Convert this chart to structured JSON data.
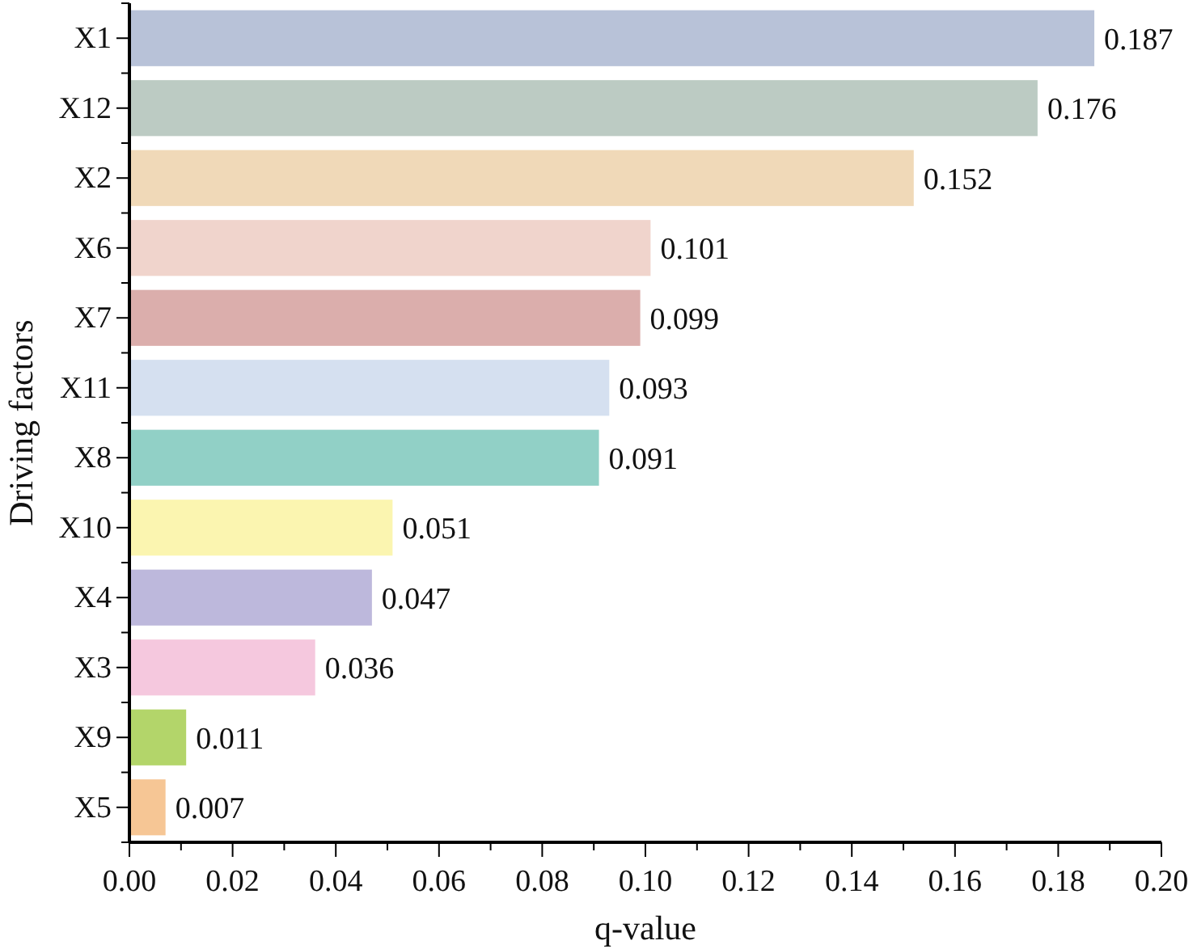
{
  "chart_data": {
    "type": "bar",
    "orientation": "horizontal",
    "xlabel": "q-value",
    "ylabel": "Driving factors",
    "categories": [
      "X1",
      "X12",
      "X2",
      "X6",
      "X7",
      "X11",
      "X8",
      "X10",
      "X4",
      "X3",
      "X9",
      "X5"
    ],
    "values": [
      0.187,
      0.176,
      0.152,
      0.101,
      0.099,
      0.093,
      0.091,
      0.051,
      0.047,
      0.036,
      0.011,
      0.007
    ],
    "colors": [
      "#b8c2d8",
      "#bccbc3",
      "#f0d9b8",
      "#f0d4cc",
      "#dbaeac",
      "#d5e0f0",
      "#91d0c6",
      "#fbf5b0",
      "#bdb8dc",
      "#f5c8de",
      "#b3d56a",
      "#f6c695"
    ],
    "data_labels": true,
    "xlim": [
      0,
      0.2
    ],
    "xticks": [
      {
        "value": 0,
        "label": "0.00"
      },
      {
        "value": 0.01,
        "label": null
      },
      {
        "value": 0.02,
        "label": "0.02"
      },
      {
        "value": 0.03,
        "label": null
      },
      {
        "value": 0.04,
        "label": "0.04"
      },
      {
        "value": 0.05,
        "label": null
      },
      {
        "value": 0.06,
        "label": "0.06"
      },
      {
        "value": 0.07,
        "label": null
      },
      {
        "value": 0.08,
        "label": "0.08"
      },
      {
        "value": 0.09,
        "label": null
      },
      {
        "value": 0.1,
        "label": "0.10"
      },
      {
        "value": 0.11,
        "label": null
      },
      {
        "value": 0.12,
        "label": "0.12"
      },
      {
        "value": 0.13,
        "label": null
      },
      {
        "value": 0.14,
        "label": "0.14"
      },
      {
        "value": 0.15,
        "label": null
      },
      {
        "value": 0.16,
        "label": "0.16"
      },
      {
        "value": 0.17,
        "label": null
      },
      {
        "value": 0.18,
        "label": "0.18"
      },
      {
        "value": 0.19,
        "label": null
      },
      {
        "value": 0.2,
        "label": "0.20"
      }
    ],
    "grid": false
  }
}
